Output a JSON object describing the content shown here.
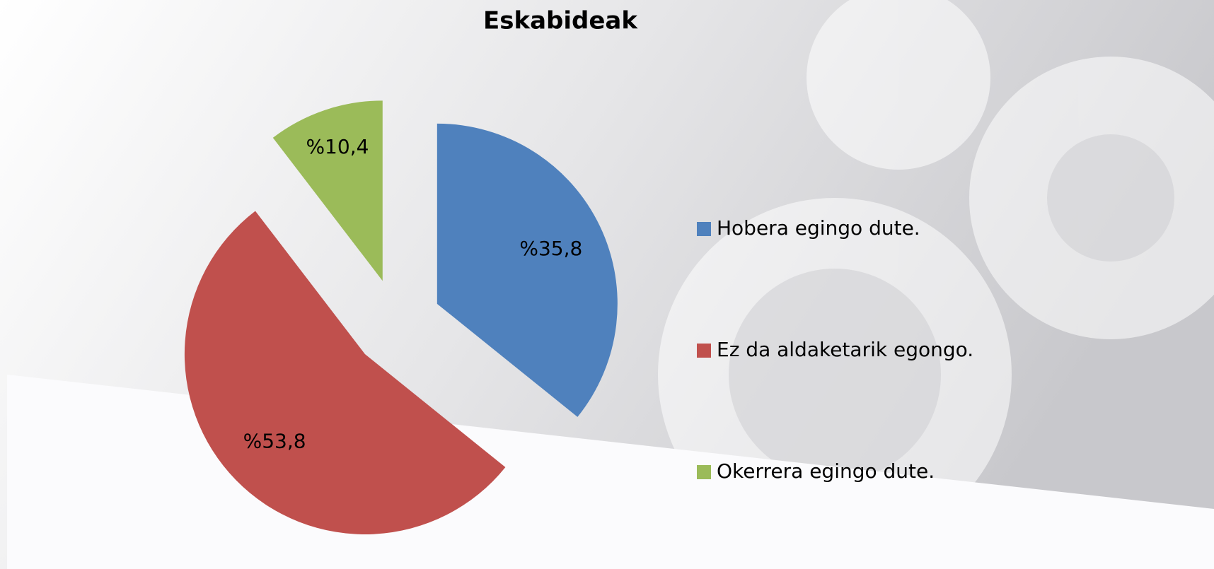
{
  "chart_data": {
    "type": "pie",
    "title": "Eskabideak",
    "categories": [
      "Hobera egingo dute.",
      "Ez da aldaketarik egongo.",
      "Okerrera egingo dute."
    ],
    "values": [
      35.8,
      53.8,
      10.4
    ],
    "value_labels": [
      "%35,8",
      "%53,8",
      "%10,4"
    ],
    "colors": [
      "#4f81bd",
      "#c0504d",
      "#9bbb59"
    ],
    "exploded": true,
    "legend": "right"
  }
}
